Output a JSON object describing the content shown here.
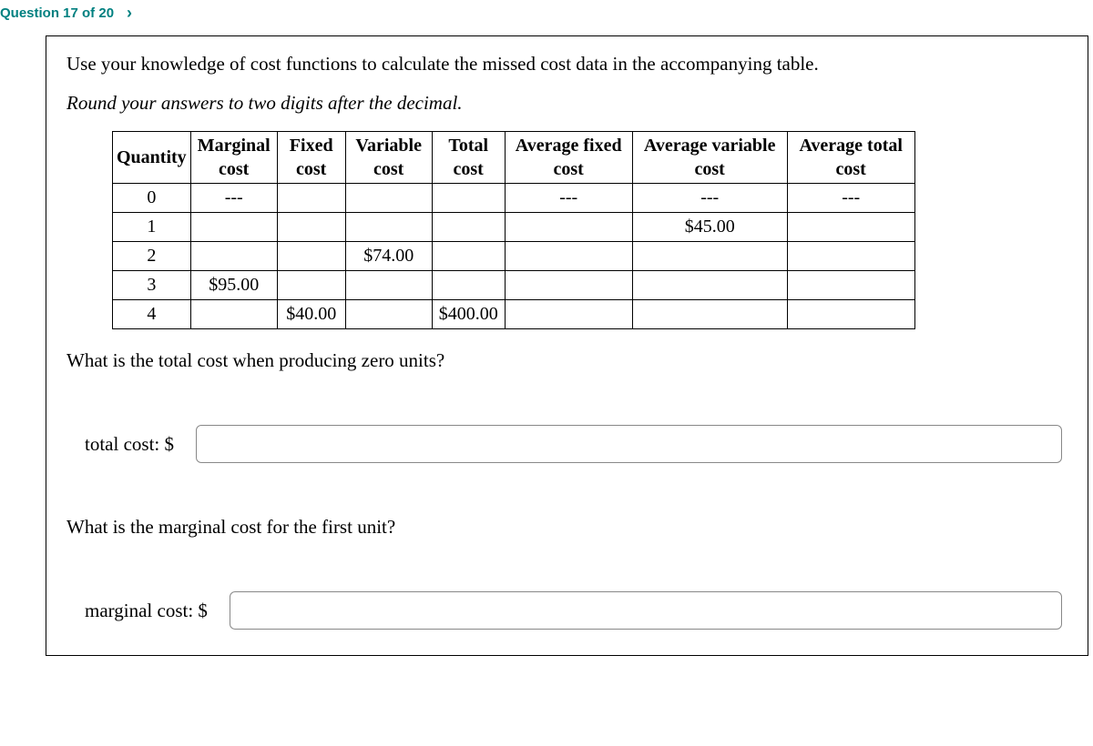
{
  "header": {
    "label": "Question 17 of 20",
    "chevron": "›"
  },
  "prompt": "Use your knowledge of cost functions to calculate the missed cost data in the accompanying table.",
  "instruction": "Round your answers to two digits after the decimal.",
  "table": {
    "columns": [
      "Quantity",
      "Marginal cost",
      "Fixed cost",
      "Variable cost",
      "Total cost",
      "Average fixed cost",
      "Average variable cost",
      "Average total cost"
    ],
    "col_widths": [
      "80px",
      "95px",
      "75px",
      "95px",
      "80px",
      "140px",
      "170px",
      "140px"
    ],
    "rows": [
      [
        "0",
        "---",
        "",
        "",
        "",
        "---",
        "---",
        "---"
      ],
      [
        "1",
        "",
        "",
        "",
        "",
        "",
        "$45.00",
        ""
      ],
      [
        "2",
        "",
        "",
        "$74.00",
        "",
        "",
        "",
        ""
      ],
      [
        "3",
        "$95.00",
        "",
        "",
        "",
        "",
        "",
        ""
      ],
      [
        "4",
        "",
        "$40.00",
        "",
        "$400.00",
        "",
        "",
        ""
      ]
    ]
  },
  "q1": {
    "text": "What is the total cost when producing zero units?",
    "label": "total cost: $",
    "value": ""
  },
  "q2": {
    "text": "What is the marginal cost for the first unit?",
    "label": "marginal cost: $",
    "value": ""
  },
  "styling": {
    "header_color": "#008080",
    "border_color": "#000000",
    "background_color": "#ffffff",
    "body_font": "Georgia, Times New Roman, serif",
    "header_font": "Arial, sans-serif",
    "prompt_fontsize": 21,
    "table_fontsize": 20,
    "input_border_color": "#888888",
    "input_border_radius": 6
  }
}
